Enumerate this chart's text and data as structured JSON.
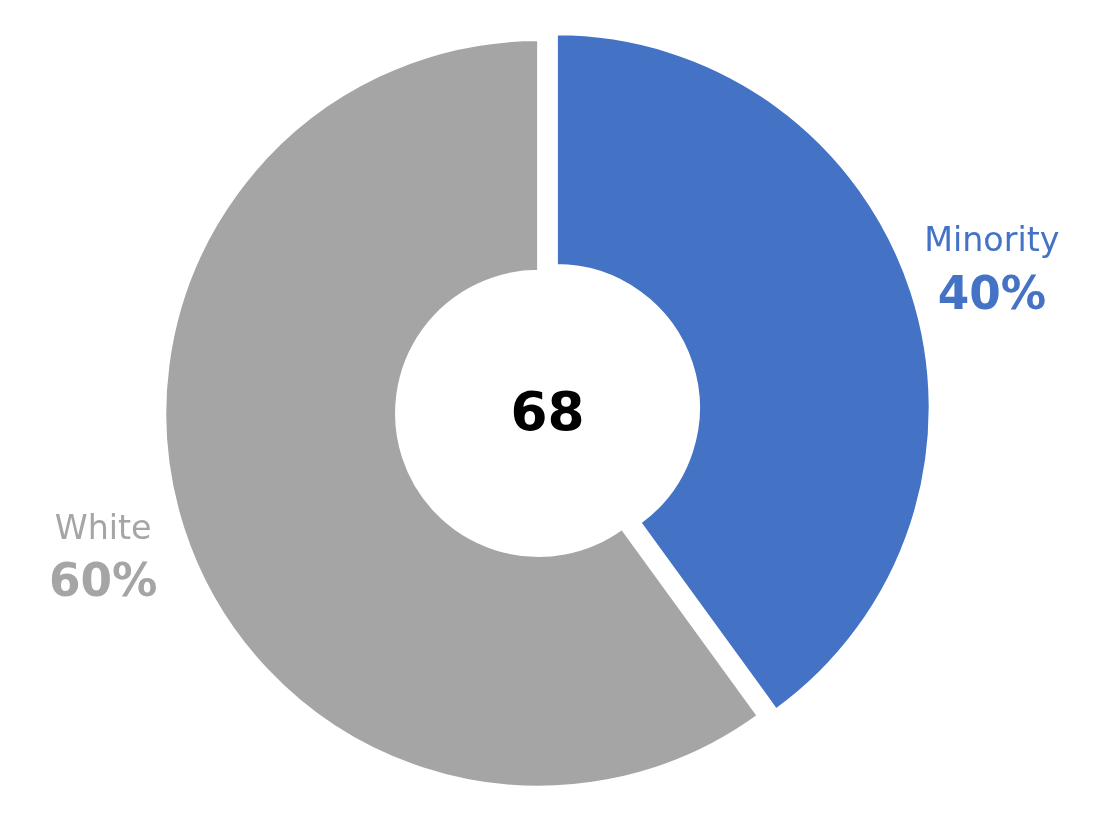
{
  "chart_data": {
    "type": "donut",
    "categories": [
      "Minority",
      "White"
    ],
    "values": [
      40,
      60
    ],
    "colors": [
      "#4472c4",
      "#a5a5a5"
    ],
    "value_labels": [
      "40%",
      "60%"
    ],
    "annotations": [
      "68"
    ]
  }
}
